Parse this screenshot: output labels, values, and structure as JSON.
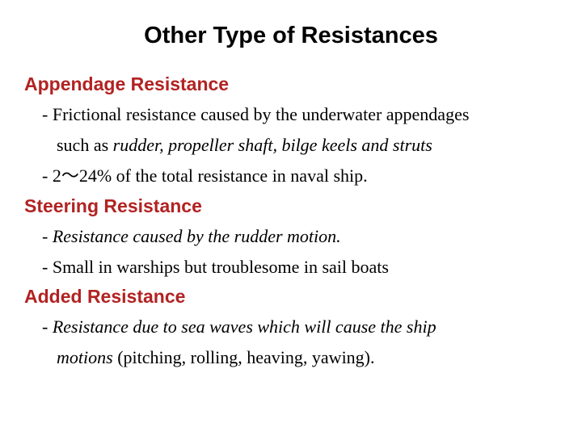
{
  "title": "Other Type of Resistances",
  "sections": [
    {
      "heading": "Appendage Resistance",
      "lines": [
        {
          "prefix": "- ",
          "text": "Frictional resistance caused by the underwater appendages",
          "indent": "bullet"
        },
        {
          "prefix": "",
          "text_plain": "such as ",
          "text_italic": "rudder, propeller shaft, bilge keels and struts",
          "indent": "bullet-cont"
        },
        {
          "prefix": "- ",
          "text": "2～24% of the total resistance in naval ship.",
          "indent": "bullet"
        }
      ]
    },
    {
      "heading": "Steering Resistance",
      "lines": [
        {
          "prefix": "- ",
          "text_italic": "Resistance caused by the rudder motion.",
          "indent": "bullet"
        },
        {
          "prefix": "- ",
          "text": "Small in warships but troublesome in sail boats",
          "indent": "bullet"
        }
      ]
    },
    {
      "heading": "Added Resistance",
      "lines": [
        {
          "prefix": "",
          "text_part1": "- Resistance due to sea waves which will cause the ship",
          "indent": "bullet",
          "italic_all": true
        },
        {
          "prefix": "",
          "text_italic": "motions",
          "text_plain_after": " (pitching, rolling, heaving, yawing).",
          "indent": "bullet-cont"
        }
      ]
    }
  ],
  "colors": {
    "heading": "#b22222",
    "text": "#000000",
    "background": "#ffffff"
  }
}
